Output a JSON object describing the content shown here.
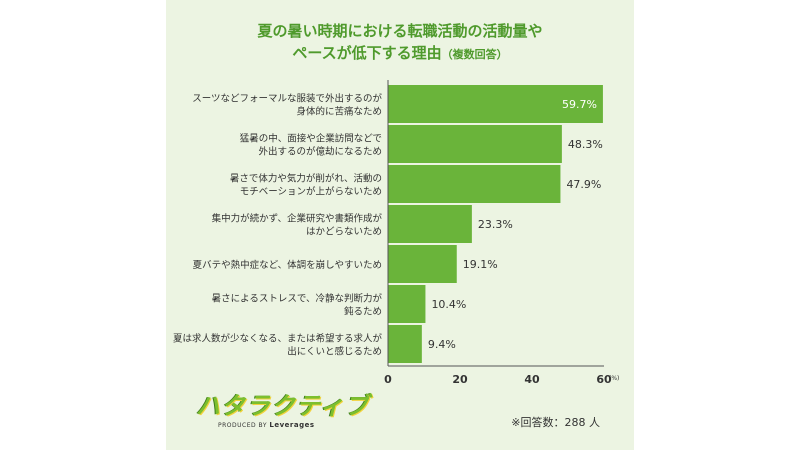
{
  "title": {
    "line1": "夏の暑い時期における転職活動の活動量や",
    "line2": "ペースが低下する理由",
    "note": "（複数回答）"
  },
  "chart_data": {
    "type": "bar",
    "orientation": "horizontal",
    "categories": [
      [
        "スーツなどフォーマルな服装で外出するのが",
        "身体的に苦痛なため"
      ],
      [
        "猛暑の中、面接や企業訪問などで",
        "外出するのが億劫になるため"
      ],
      [
        "暑さで体力や気力が削がれ、活動の",
        "モチベーションが上がらないため"
      ],
      [
        "集中力が続かず、企業研究や書類作成が",
        "はかどらないため"
      ],
      [
        "夏バテや熱中症など、体調を崩しやすいため"
      ],
      [
        "暑さによるストレスで、冷静な判断力が",
        "鈍るため"
      ],
      [
        "夏は求人数が少なくなる、または希望する求人が",
        "出にくいと感じるため"
      ]
    ],
    "values": [
      59.7,
      48.3,
      47.9,
      23.3,
      19.1,
      10.4,
      9.4
    ],
    "value_labels": [
      "59.7%",
      "48.3%",
      "47.9%",
      "23.3%",
      "19.1%",
      "10.4%",
      "9.4%"
    ],
    "xlim": [
      0,
      60
    ],
    "xticks": [
      "0",
      "20",
      "40",
      "60"
    ],
    "x_unit": "(%)",
    "bar_color": "#6ab43a",
    "grid": false
  },
  "footer": {
    "logo_text": "ハタラクティブ",
    "logo_sub_prefix": "PRODUCED BY",
    "logo_sub_brand": "Leverages",
    "respondents": "※回答数：288 人"
  }
}
